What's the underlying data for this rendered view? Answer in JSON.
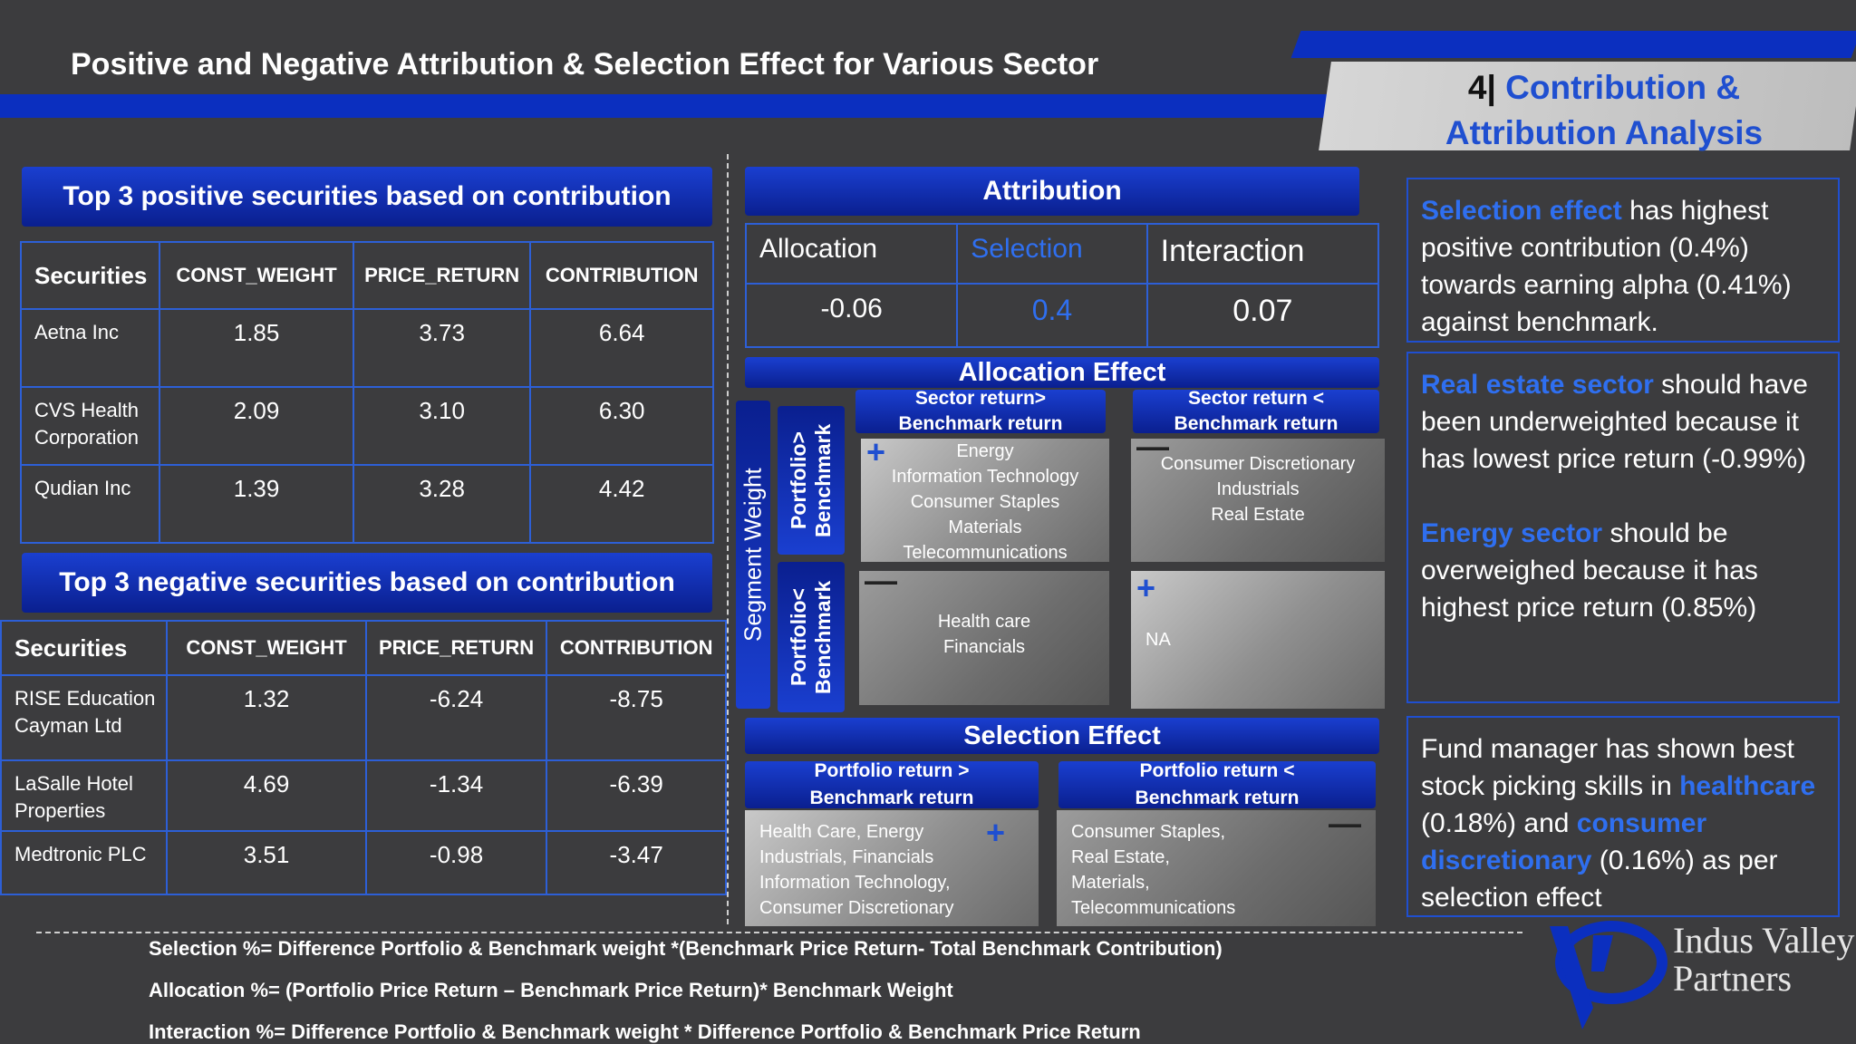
{
  "header": {
    "title": "Positive and Negative Attribution & Selection Effect for Various Sector",
    "section_number": "4|",
    "section_title": "Contribution & Attribution Analysis"
  },
  "positive_table": {
    "heading": "Top 3 positive securities based on contribution",
    "columns": [
      "Securities",
      "CONST_WEIGHT",
      "PRICE_RETURN",
      "CONTRIBUTION"
    ],
    "rows": [
      {
        "name": "Aetna Inc",
        "weight": "1.85",
        "price_return": "3.73",
        "contribution": "6.64"
      },
      {
        "name": "CVS Health Corporation",
        "weight": "2.09",
        "price_return": "3.10",
        "contribution": "6.30"
      },
      {
        "name": "Qudian Inc",
        "weight": "1.39",
        "price_return": "3.28",
        "contribution": "4.42"
      }
    ]
  },
  "negative_table": {
    "heading": "Top 3 negative securities based on contribution",
    "columns": [
      "Securities",
      "CONST_WEIGHT",
      "PRICE_RETURN",
      "CONTRIBUTION"
    ],
    "rows": [
      {
        "name": "RISE Education Cayman Ltd",
        "weight": "1.32",
        "price_return": "-6.24",
        "contribution": "-8.75"
      },
      {
        "name": "LaSalle Hotel Properties",
        "weight": "4.69",
        "price_return": "-1.34",
        "contribution": "-6.39"
      },
      {
        "name": "Medtronic PLC",
        "weight": "3.51",
        "price_return": "-0.98",
        "contribution": "-3.47"
      }
    ]
  },
  "attribution": {
    "heading": "Attribution",
    "allocation_label": "Allocation",
    "selection_label": "Selection",
    "interaction_label": "Interaction",
    "allocation_value": "-0.06",
    "selection_value": "0.4",
    "interaction_value": "0.07"
  },
  "allocation_effect": {
    "heading": "Allocation Effect",
    "segment_label": "Segment Weight",
    "row1_label": "Portfolio> Benchmark",
    "row2_label": "Portfolio< Benchmark",
    "col1_label": "Sector return> Benchmark return",
    "col2_label": "Sector return < Benchmark return",
    "cell_tl": [
      "Energy",
      "Information Technology",
      "Consumer Staples",
      "Materials",
      "Telecommunications"
    ],
    "cell_tr": [
      "Consumer Discretionary",
      "Industrials",
      "Real Estate"
    ],
    "cell_bl": [
      "Health care",
      "Financials"
    ],
    "cell_br": [
      "NA"
    ]
  },
  "selection_effect": {
    "heading": "Selection Effect",
    "col1_label": "Portfolio return > Benchmark return",
    "col2_label": "Portfolio return < Benchmark return",
    "cell_left": [
      "Health Care, Energy",
      "Industrials, Financials",
      "Information Technology,",
      "Consumer Discretionary"
    ],
    "cell_right": [
      "Consumer Staples,",
      "Real Estate,",
      "Materials,",
      "Telecommunications"
    ]
  },
  "notes": {
    "note1_hl": "Selection effect",
    "note1_text": "has highest positive contribution (0.4%) towards earning alpha (0.41%) against benchmark.",
    "note2_hl": "Real estate sector",
    "note2_text": "should have been underweighted because it has lowest price return (-0.99%)",
    "note3_hl": "Energy sector",
    "note3_text": "should be overweighed because it has highest price return (0.85%)",
    "note4_pre": "Fund manager has shown best stock picking skills in",
    "note4_hl1": "healthcare",
    "note4_mid": "(0.18%) and",
    "note4_hl2": "consumer discretionary",
    "note4_post": "(0.16%) as per selection effect"
  },
  "formulas": {
    "selection": "Selection %= Difference Portfolio & Benchmark weight *(Benchmark Price Return- Total Benchmark Contribution)",
    "allocation": "Allocation %=  (Portfolio Price Return – Benchmark Price Return)* Benchmark Weight",
    "interaction": "Interaction %= Difference Portfolio & Benchmark weight * Difference Portfolio & Benchmark Price Return"
  },
  "logo": {
    "line1": "Indus Valley",
    "line2": "Partners"
  },
  "colors": {
    "accent_blue": "#0b2fbf",
    "highlight_blue": "#2f6ff0",
    "background": "#3c3c3e"
  }
}
